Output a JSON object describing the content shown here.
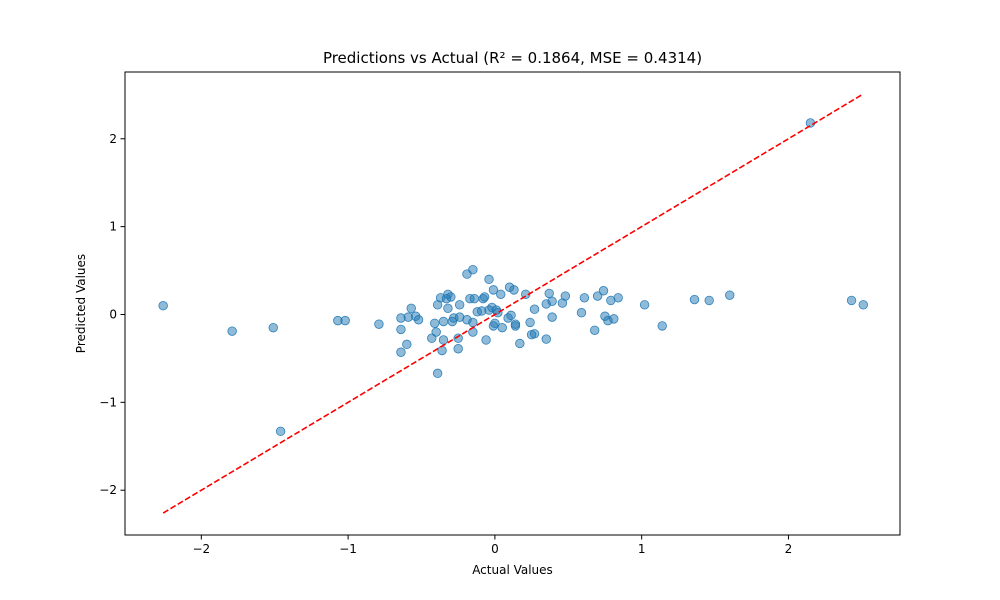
{
  "chart_data": {
    "type": "scatter",
    "title": "Predictions vs Actual (R² = 0.1864, MSE = 0.4314)",
    "xlabel": "Actual Values",
    "ylabel": "Predicted Values",
    "xlim": [
      -2.52,
      2.76
    ],
    "ylim": [
      -2.51,
      2.76
    ],
    "xticks": [
      {
        "value": -2,
        "label": "−2"
      },
      {
        "value": -1,
        "label": "−1"
      },
      {
        "value": 0,
        "label": "0"
      },
      {
        "value": 1,
        "label": "1"
      },
      {
        "value": 2,
        "label": "2"
      }
    ],
    "yticks": [
      {
        "value": -2,
        "label": "−2"
      },
      {
        "value": -1,
        "label": "−1"
      },
      {
        "value": 0,
        "label": "0"
      },
      {
        "value": 1,
        "label": "1"
      },
      {
        "value": 2,
        "label": "2"
      }
    ],
    "grid": false,
    "point_color": "#1f77b4",
    "point_opacity": 0.5,
    "reference_line": {
      "style": "dashed",
      "color": "#ff0000",
      "x": [
        -2.26,
        2.51
      ],
      "y": [
        -2.26,
        2.51
      ]
    },
    "points": [
      {
        "x": -2.26,
        "y": 0.1
      },
      {
        "x": -1.79,
        "y": -0.19
      },
      {
        "x": -1.51,
        "y": -0.15
      },
      {
        "x": -1.46,
        "y": -1.33
      },
      {
        "x": -1.07,
        "y": -0.07
      },
      {
        "x": -1.02,
        "y": -0.07
      },
      {
        "x": -0.79,
        "y": -0.11
      },
      {
        "x": -0.64,
        "y": -0.43
      },
      {
        "x": -0.64,
        "y": -0.17
      },
      {
        "x": -0.64,
        "y": -0.04
      },
      {
        "x": -0.6,
        "y": -0.34
      },
      {
        "x": -0.59,
        "y": -0.03
      },
      {
        "x": -0.57,
        "y": 0.07
      },
      {
        "x": -0.54,
        "y": -0.02
      },
      {
        "x": -0.52,
        "y": -0.06
      },
      {
        "x": -0.43,
        "y": -0.27
      },
      {
        "x": -0.41,
        "y": -0.1
      },
      {
        "x": -0.4,
        "y": -0.2
      },
      {
        "x": -0.39,
        "y": -0.67
      },
      {
        "x": -0.39,
        "y": 0.11
      },
      {
        "x": -0.37,
        "y": 0.19
      },
      {
        "x": -0.36,
        "y": -0.41
      },
      {
        "x": -0.35,
        "y": -0.08
      },
      {
        "x": -0.35,
        "y": -0.29
      },
      {
        "x": -0.33,
        "y": 0.18
      },
      {
        "x": -0.32,
        "y": 0.23
      },
      {
        "x": -0.32,
        "y": 0.07
      },
      {
        "x": -0.3,
        "y": 0.2
      },
      {
        "x": -0.29,
        "y": -0.08
      },
      {
        "x": -0.28,
        "y": -0.04
      },
      {
        "x": -0.25,
        "y": -0.39
      },
      {
        "x": -0.25,
        "y": -0.27
      },
      {
        "x": -0.24,
        "y": -0.03
      },
      {
        "x": -0.24,
        "y": 0.11
      },
      {
        "x": -0.19,
        "y": 0.46
      },
      {
        "x": -0.19,
        "y": -0.06
      },
      {
        "x": -0.17,
        "y": 0.18
      },
      {
        "x": -0.15,
        "y": 0.51
      },
      {
        "x": -0.15,
        "y": -0.2
      },
      {
        "x": -0.15,
        "y": -0.09
      },
      {
        "x": -0.14,
        "y": 0.18
      },
      {
        "x": -0.12,
        "y": 0.03
      },
      {
        "x": -0.09,
        "y": 0.04
      },
      {
        "x": -0.08,
        "y": 0.18
      },
      {
        "x": -0.07,
        "y": 0.2
      },
      {
        "x": -0.06,
        "y": -0.29
      },
      {
        "x": -0.04,
        "y": 0.4
      },
      {
        "x": -0.04,
        "y": 0.05
      },
      {
        "x": -0.02,
        "y": 0.08
      },
      {
        "x": -0.01,
        "y": 0.28
      },
      {
        "x": -0.01,
        "y": -0.13
      },
      {
        "x": 0.0,
        "y": -0.1
      },
      {
        "x": 0.01,
        "y": 0.05
      },
      {
        "x": 0.02,
        "y": 0.02
      },
      {
        "x": 0.04,
        "y": 0.23
      },
      {
        "x": 0.05,
        "y": -0.15
      },
      {
        "x": 0.09,
        "y": -0.04
      },
      {
        "x": 0.1,
        "y": 0.31
      },
      {
        "x": 0.11,
        "y": -0.01
      },
      {
        "x": 0.13,
        "y": 0.28
      },
      {
        "x": 0.14,
        "y": -0.11
      },
      {
        "x": 0.14,
        "y": -0.13
      },
      {
        "x": 0.17,
        "y": -0.33
      },
      {
        "x": 0.21,
        "y": 0.23
      },
      {
        "x": 0.24,
        "y": -0.09
      },
      {
        "x": 0.25,
        "y": -0.23
      },
      {
        "x": 0.27,
        "y": 0.06
      },
      {
        "x": 0.27,
        "y": -0.22
      },
      {
        "x": 0.35,
        "y": -0.28
      },
      {
        "x": 0.35,
        "y": 0.12
      },
      {
        "x": 0.37,
        "y": 0.24
      },
      {
        "x": 0.39,
        "y": 0.15
      },
      {
        "x": 0.39,
        "y": -0.03
      },
      {
        "x": 0.46,
        "y": 0.13
      },
      {
        "x": 0.48,
        "y": 0.21
      },
      {
        "x": 0.59,
        "y": 0.02
      },
      {
        "x": 0.61,
        "y": 0.19
      },
      {
        "x": 0.68,
        "y": -0.18
      },
      {
        "x": 0.7,
        "y": 0.21
      },
      {
        "x": 0.74,
        "y": 0.27
      },
      {
        "x": 0.75,
        "y": -0.02
      },
      {
        "x": 0.77,
        "y": -0.07
      },
      {
        "x": 0.79,
        "y": 0.16
      },
      {
        "x": 0.81,
        "y": -0.05
      },
      {
        "x": 0.84,
        "y": 0.19
      },
      {
        "x": 1.02,
        "y": 0.11
      },
      {
        "x": 1.14,
        "y": -0.13
      },
      {
        "x": 1.36,
        "y": 0.17
      },
      {
        "x": 1.46,
        "y": 0.16
      },
      {
        "x": 1.6,
        "y": 0.22
      },
      {
        "x": 2.15,
        "y": 2.18
      },
      {
        "x": 2.43,
        "y": 0.16
      },
      {
        "x": 2.51,
        "y": 0.11
      }
    ]
  }
}
